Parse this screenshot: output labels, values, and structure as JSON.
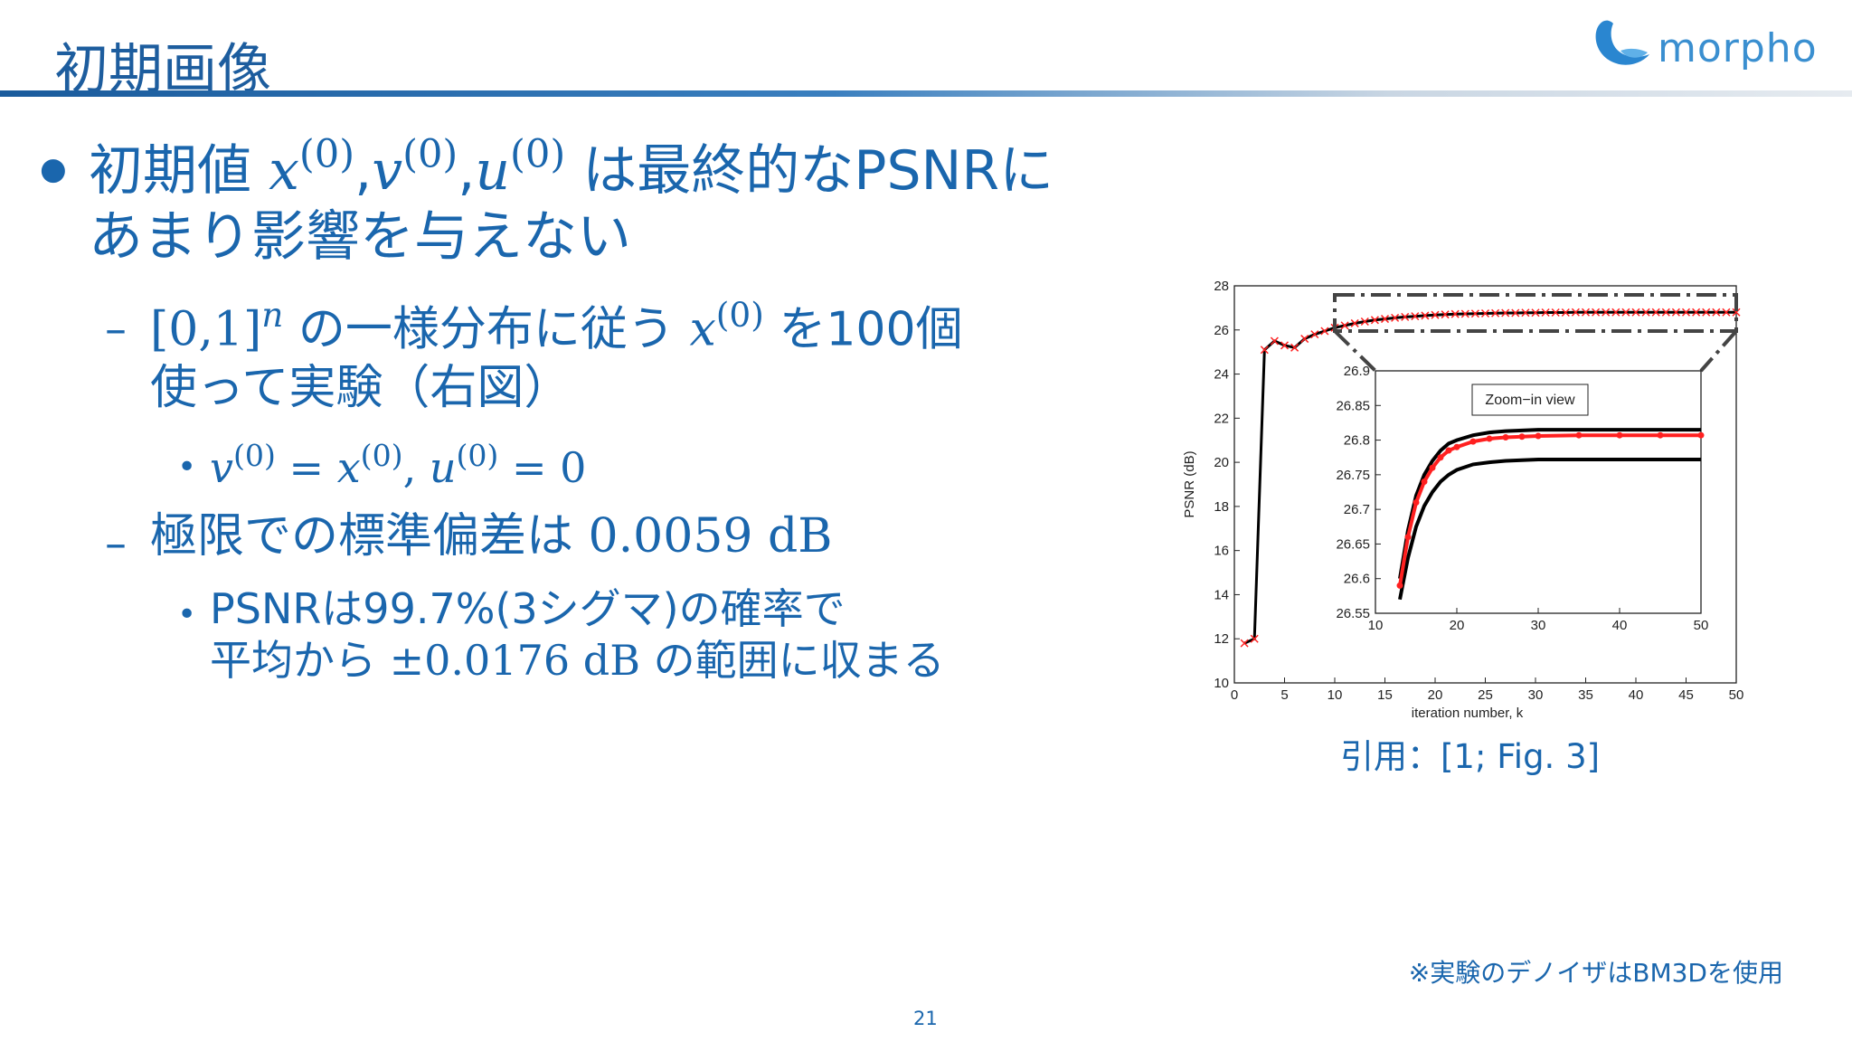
{
  "header": {
    "title": "初期画像",
    "logo": "morpho"
  },
  "bullets": [
    {
      "lines": [
        [
          "初期値 ",
          {
            "m": "x",
            "sup": "(0)"
          },
          ",",
          {
            "m": "v",
            "sup": "(0)"
          },
          ",",
          {
            "m": "u",
            "sup": "(0)"
          },
          " は最終的なPSNRに"
        ],
        [
          "あまり影響を与えない"
        ]
      ],
      "sub": [
        {
          "lines": [
            [
              {
                "s": "[0,1]"
              },
              {
                "m": "",
                "sup": "n"
              },
              " の一様分布に従う ",
              {
                "m": "x",
                "sup": "(0)"
              },
              " を100個"
            ],
            [
              "使って実験（右図）"
            ]
          ],
          "sub": [
            {
              "lines": [
                [
                  {
                    "m": "v",
                    "sup": "(0)"
                  },
                  {
                    "s": " = "
                  },
                  {
                    "m": "x",
                    "sup": "(0)"
                  },
                  {
                    "s": ",  "
                  },
                  {
                    "m": "u",
                    "sup": "(0)"
                  },
                  {
                    "s": " = 0"
                  }
                ]
              ]
            }
          ]
        },
        {
          "lines": [
            [
              "極限での標準偏差は ",
              {
                "s": "0.0059 dB"
              }
            ]
          ],
          "sub": [
            {
              "lines": [
                [
                  "PSNRは99.7%(3シグマ)の確率で"
                ],
                [
                  "平均から ",
                  {
                    "s": "±0.0176 dB"
                  },
                  " の範囲に収まる"
                ]
              ]
            }
          ]
        }
      ]
    }
  ],
  "chart_data": [
    {
      "type": "line",
      "xlabel": "iteration number, k",
      "ylabel": "PSNR (dB)",
      "xlim": [
        0,
        50
      ],
      "ylim": [
        10,
        28
      ],
      "xticks": [
        0,
        5,
        10,
        15,
        20,
        25,
        30,
        35,
        40,
        45,
        50
      ],
      "yticks": [
        10,
        12,
        14,
        16,
        18,
        20,
        22,
        24,
        26,
        28
      ],
      "x": [
        1,
        2,
        3,
        4,
        5,
        6,
        7,
        8,
        9,
        10,
        11,
        12,
        13,
        14,
        15,
        16,
        17,
        18,
        19,
        20,
        21,
        22,
        23,
        24,
        25,
        26,
        27,
        28,
        29,
        30,
        31,
        32,
        33,
        34,
        35,
        36,
        37,
        38,
        39,
        40,
        41,
        42,
        43,
        44,
        45,
        46,
        47,
        48,
        49,
        50
      ],
      "series": [
        {
          "color": "#000000",
          "marker_color": "#ff2020",
          "values": [
            11.8,
            12.0,
            25.1,
            25.5,
            25.3,
            25.2,
            25.6,
            25.8,
            25.95,
            26.1,
            26.2,
            26.3,
            26.38,
            26.45,
            26.5,
            26.55,
            26.59,
            26.62,
            26.65,
            26.68,
            26.7,
            26.72,
            26.73,
            26.74,
            26.75,
            26.76,
            26.77,
            26.77,
            26.78,
            26.78,
            26.79,
            26.79,
            26.79,
            26.8,
            26.8,
            26.8,
            26.8,
            26.8,
            26.8,
            26.8,
            26.8,
            26.8,
            26.8,
            26.8,
            26.8,
            26.8,
            26.8,
            26.8,
            26.8,
            26.8
          ]
        }
      ]
    },
    {
      "type": "line",
      "annotation": "Zoom−in view",
      "xlim": [
        10,
        50
      ],
      "ylim": [
        26.55,
        26.9
      ],
      "xticks": [
        10,
        20,
        30,
        40,
        50
      ],
      "yticks": [
        26.55,
        26.6,
        26.65,
        26.7,
        26.75,
        26.8,
        26.85,
        26.9
      ],
      "x": [
        13,
        14,
        15,
        16,
        17,
        18,
        19,
        20,
        22,
        24,
        26,
        28,
        30,
        35,
        40,
        45,
        50
      ],
      "series": [
        {
          "color": "#000000",
          "values": [
            26.6,
            26.67,
            26.72,
            26.75,
            26.77,
            26.785,
            26.795,
            26.8,
            26.807,
            26.811,
            26.813,
            26.814,
            26.815,
            26.815,
            26.815,
            26.815,
            26.815
          ]
        },
        {
          "color": "#000000",
          "values": [
            26.57,
            26.63,
            26.675,
            26.705,
            26.725,
            26.74,
            26.75,
            26.757,
            26.765,
            26.768,
            26.77,
            26.771,
            26.772,
            26.772,
            26.772,
            26.772,
            26.772
          ]
        },
        {
          "color": "#ff2020",
          "values": [
            26.59,
            26.66,
            26.71,
            26.74,
            26.76,
            26.775,
            26.785,
            26.79,
            26.798,
            26.802,
            26.804,
            26.805,
            26.806,
            26.807,
            26.807,
            26.807,
            26.807
          ]
        }
      ]
    }
  ],
  "caption": "引用：[1; Fig. 3]",
  "footnote": "※実験のデノイザはBM3Dを使用",
  "page_number": "21"
}
